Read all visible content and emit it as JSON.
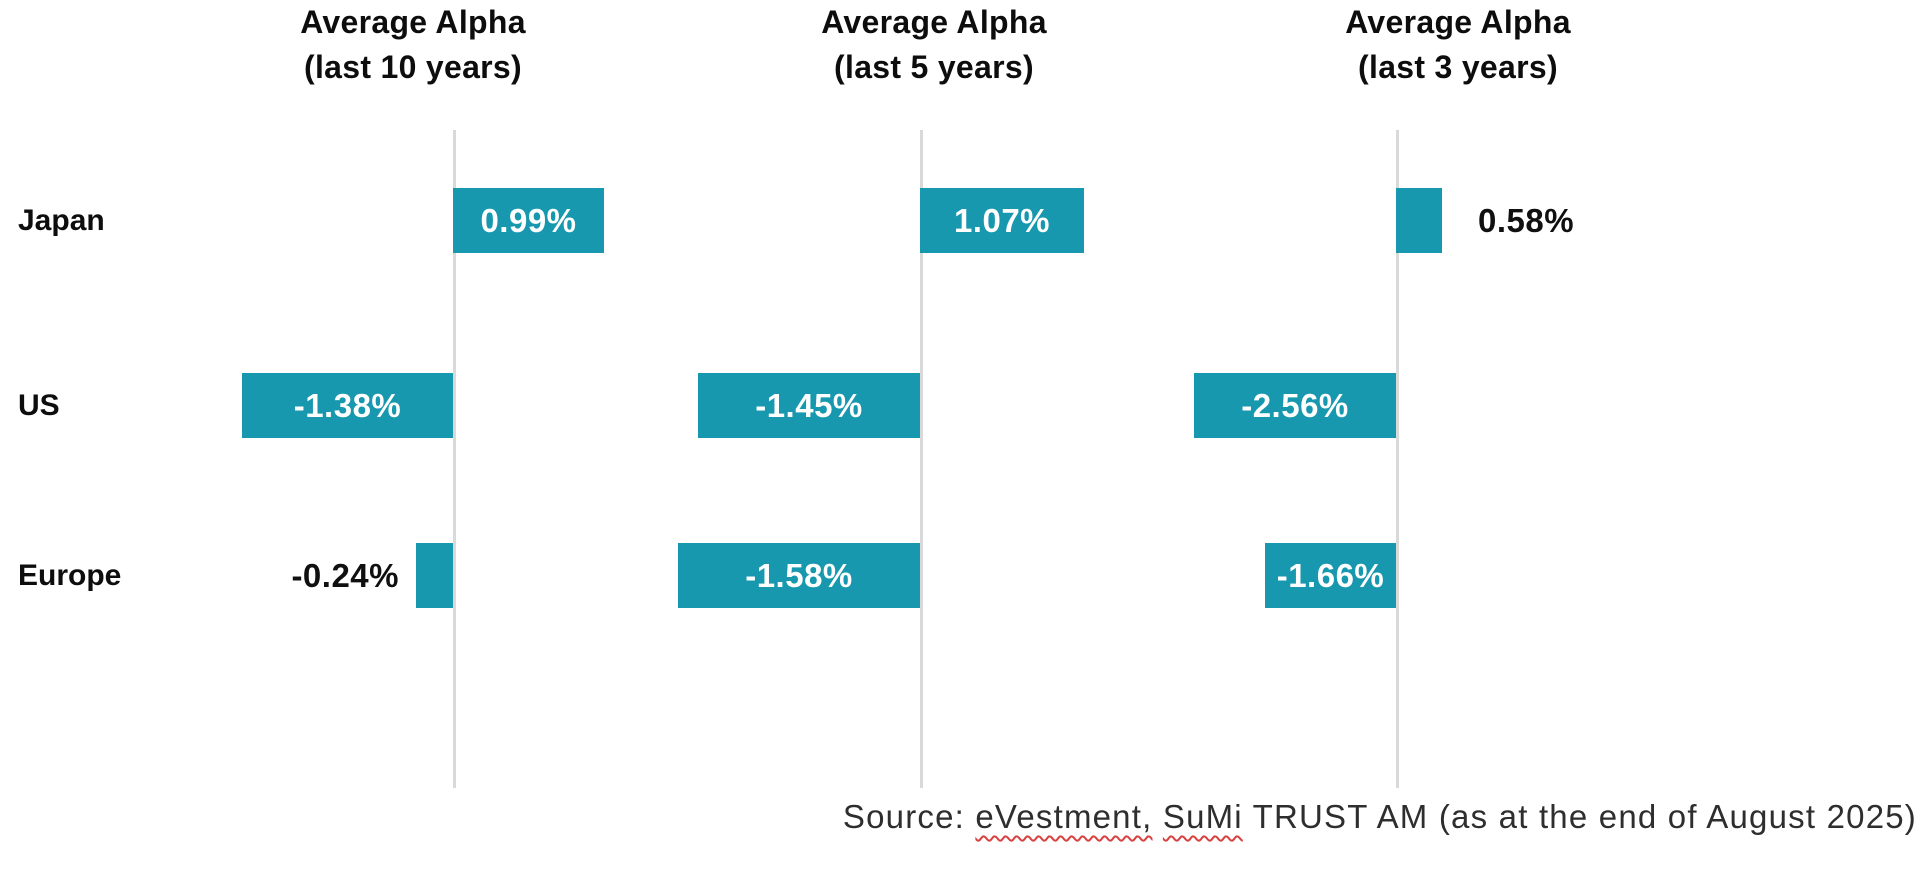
{
  "chart_data": {
    "type": "bar",
    "orientation": "horizontal",
    "unit": "%",
    "categories": [
      "Japan",
      "US",
      "Europe"
    ],
    "panels": [
      {
        "title": [
          "Average Alpha",
          "(last 10 years)"
        ],
        "values": [
          0.99,
          -1.38,
          -0.24
        ],
        "labels": [
          "0.99%",
          "-1.38%",
          "-0.24%"
        ]
      },
      {
        "title": [
          "Average Alpha",
          "(last 5 years)"
        ],
        "values": [
          1.07,
          -1.45,
          -1.58
        ],
        "labels": [
          "1.07%",
          "-1.45%",
          "-1.58%"
        ]
      },
      {
        "title": [
          "Average Alpha",
          "(last 3 years)"
        ],
        "values": [
          0.58,
          -2.56,
          -1.66
        ],
        "labels": [
          "0.58%",
          "-2.56%",
          "-1.66%"
        ]
      }
    ],
    "bar_color": "#1798ae",
    "axis_line_color": "#d9d9d9",
    "value_label_inside_color": "#ffffff",
    "value_label_outside_color": "#101010",
    "layout_hints": "three side-by-side diverging horizontal bar panels sharing row categories; each panel has a single vertical zero baseline, no ticks, no gridlines, no legend"
  },
  "source": {
    "part1": "Source: ",
    "evestment": "eVestment,",
    "sep": " ",
    "sumi": "SuMi",
    "part2": " TRUST AM (as at the end of August 2025)"
  }
}
